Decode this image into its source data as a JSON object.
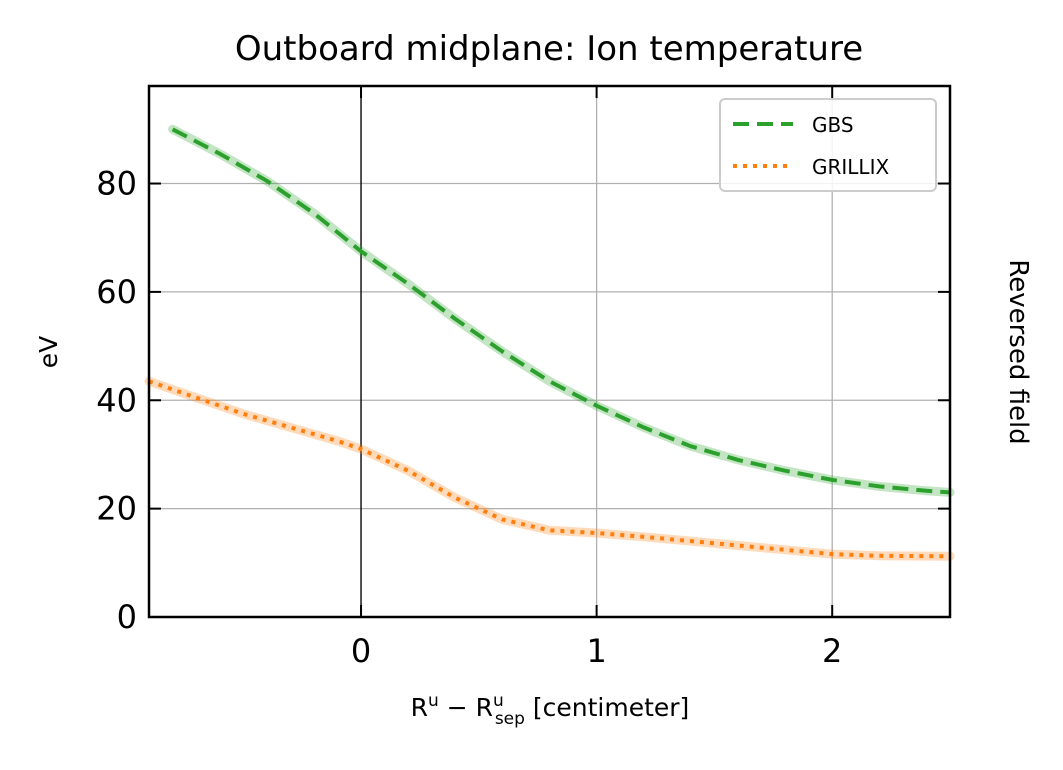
{
  "chart_data": {
    "type": "line",
    "title": "Outboard midplane: Ion temperature",
    "xlabel": {
      "base": "R",
      "sup1": "u",
      "minus": " − ",
      "base2": "R",
      "sup2": "u",
      "sub2": "sep",
      "unit": " [centimeter]"
    },
    "ylabel": "eV",
    "side_label": "Reversed field",
    "xlim": [
      -0.9,
      2.5
    ],
    "ylim": [
      0,
      98
    ],
    "xticks": [
      0,
      1,
      2
    ],
    "yticks": [
      0,
      20,
      40,
      60,
      80
    ],
    "grid": true,
    "vline_x": 0,
    "legend_position": "top-right",
    "series": [
      {
        "name": "GBS",
        "color": "#2ca02c",
        "style": "dashed",
        "x": [
          -0.8,
          -0.6,
          -0.4,
          -0.2,
          0.0,
          0.2,
          0.4,
          0.6,
          0.8,
          1.0,
          1.2,
          1.4,
          1.6,
          1.8,
          2.0,
          2.2,
          2.4,
          2.5
        ],
        "y": [
          90,
          85.5,
          80.5,
          74.5,
          67.5,
          61.5,
          55,
          49,
          43.5,
          39,
          35,
          31.5,
          29,
          27,
          25.3,
          24.1,
          23.3,
          23
        ]
      },
      {
        "name": "GRILLIX",
        "color": "#ff7f0e",
        "style": "dotted",
        "x": [
          -0.9,
          -0.7,
          -0.5,
          -0.3,
          -0.1,
          0.0,
          0.2,
          0.4,
          0.6,
          0.8,
          1.0,
          1.2,
          1.4,
          1.6,
          1.8,
          2.0,
          2.2,
          2.5
        ],
        "y": [
          43.5,
          40.5,
          37.5,
          35,
          32.5,
          31,
          27,
          22,
          18,
          16,
          15.5,
          14.8,
          14,
          13.2,
          12.4,
          11.6,
          11.3,
          11.2
        ]
      }
    ]
  }
}
